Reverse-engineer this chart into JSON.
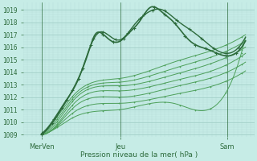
{
  "bg_color": "#c6ece6",
  "grid_color_major": "#9dccc4",
  "grid_color_minor": "#b5ddd8",
  "line_color_dark": "#2d6b3c",
  "line_color_mid": "#3d8a4a",
  "line_color_light": "#4da05a",
  "ylabel_values": [
    1009,
    1010,
    1011,
    1012,
    1013,
    1014,
    1015,
    1016,
    1017,
    1018,
    1019
  ],
  "ylim": [
    1008.8,
    1019.6
  ],
  "xlim": [
    0.0,
    1.0
  ],
  "xlabel": "Pression niveau de la mer( hPa )",
  "xtick_labels": [
    "MerVen",
    "Jeu",
    "Sam"
  ],
  "xtick_positions": [
    0.08,
    0.42,
    0.88
  ]
}
